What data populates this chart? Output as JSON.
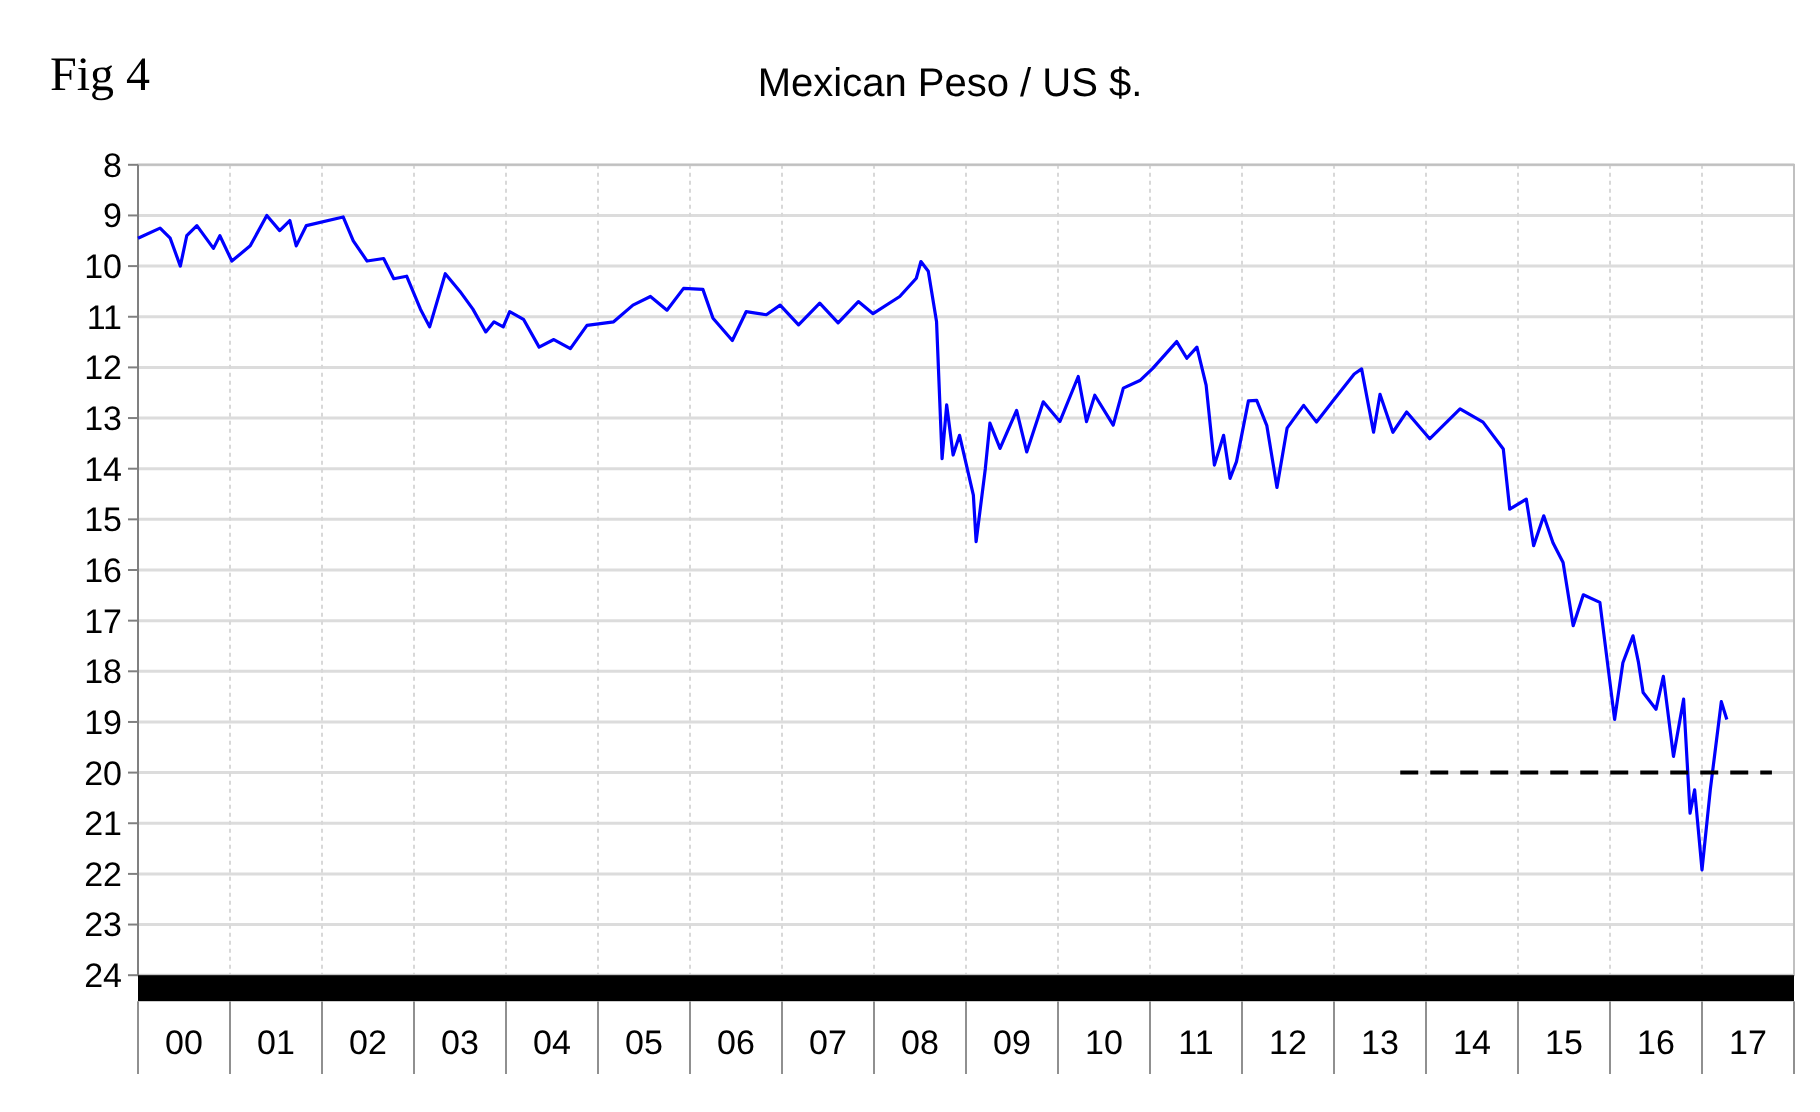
{
  "chart_data": {
    "type": "line",
    "title": "Mexican Peso / US $.",
    "annotations": [
      "Fig 4"
    ],
    "xlim": [
      -0.5,
      17.5
    ],
    "xticks": [
      {
        "value": -0.5,
        "label": null
      },
      {
        "value": 0,
        "label": "00"
      },
      {
        "value": 0.5,
        "label": null
      },
      {
        "value": 1,
        "label": "01"
      },
      {
        "value": 1.5,
        "label": null
      },
      {
        "value": 2,
        "label": "02"
      },
      {
        "value": 2.5,
        "label": null
      },
      {
        "value": 3,
        "label": "03"
      },
      {
        "value": 3.5,
        "label": null
      },
      {
        "value": 4,
        "label": "04"
      },
      {
        "value": 4.5,
        "label": null
      },
      {
        "value": 5,
        "label": "05"
      },
      {
        "value": 5.5,
        "label": null
      },
      {
        "value": 6,
        "label": "06"
      },
      {
        "value": 6.5,
        "label": null
      },
      {
        "value": 7,
        "label": "07"
      },
      {
        "value": 7.5,
        "label": null
      },
      {
        "value": 8,
        "label": "08"
      },
      {
        "value": 8.5,
        "label": null
      },
      {
        "value": 9,
        "label": "09"
      },
      {
        "value": 9.5,
        "label": null
      },
      {
        "value": 10,
        "label": "10"
      },
      {
        "value": 10.5,
        "label": null
      },
      {
        "value": 11,
        "label": "11"
      },
      {
        "value": 11.5,
        "label": null
      },
      {
        "value": 12,
        "label": "12"
      },
      {
        "value": 12.5,
        "label": null
      },
      {
        "value": 13,
        "label": "13"
      },
      {
        "value": 13.5,
        "label": null
      },
      {
        "value": 14,
        "label": "14"
      },
      {
        "value": 14.5,
        "label": null
      },
      {
        "value": 15,
        "label": "15"
      },
      {
        "value": 15.5,
        "label": null
      },
      {
        "value": 16,
        "label": "16"
      },
      {
        "value": 16.5,
        "label": null
      },
      {
        "value": 17,
        "label": "17"
      },
      {
        "value": 17.5,
        "label": null
      }
    ],
    "ylim": [
      24,
      8
    ],
    "yticks": [
      8,
      9,
      10,
      11,
      12,
      13,
      14,
      15,
      16,
      17,
      18,
      19,
      20,
      21,
      22,
      23,
      24
    ],
    "grid": true,
    "marker": "none",
    "series": [
      {
        "color": "#0000ff",
        "line_style": "solid",
        "x": [
          -0.5,
          -0.26,
          -0.15,
          -0.04,
          0.03,
          0.14,
          0.32,
          0.39,
          0.52,
          0.72,
          0.9,
          1.04,
          1.15,
          1.22,
          1.33,
          1.73,
          1.84,
          1.99,
          2.17,
          2.28,
          2.42,
          2.57,
          2.67,
          2.84,
          3.0,
          3.14,
          3.28,
          3.37,
          3.47,
          3.54,
          3.69,
          3.86,
          4.02,
          4.2,
          4.38,
          4.67,
          4.88,
          5.07,
          5.25,
          5.43,
          5.64,
          5.75,
          5.96,
          6.11,
          6.33,
          6.48,
          6.68,
          6.91,
          7.11,
          7.33,
          7.49,
          7.78,
          7.96,
          8.01,
          8.09,
          8.18,
          8.24,
          8.29,
          8.36,
          8.43,
          8.58,
          8.61,
          8.71,
          8.76,
          8.87,
          9.05,
          9.16,
          9.34,
          9.52,
          9.72,
          9.81,
          9.9,
          10.1,
          10.21,
          10.39,
          10.53,
          10.79,
          10.9,
          11.01,
          11.11,
          11.2,
          11.3,
          11.37,
          11.44,
          11.57,
          11.66,
          11.77,
          11.88,
          11.99,
          12.17,
          12.31,
          12.49,
          12.72,
          12.8,
          12.93,
          13.0,
          13.14,
          13.29,
          13.54,
          13.87,
          14.12,
          14.34,
          14.41,
          14.59,
          14.67,
          14.78,
          14.88,
          14.99,
          15.1,
          15.21,
          15.39,
          15.55,
          15.64,
          15.75,
          15.81,
          15.86,
          16.0,
          16.08,
          16.19,
          16.3,
          16.37,
          16.42,
          16.5,
          16.59,
          16.71,
          16.77
        ],
        "values": [
          9.45,
          9.25,
          9.45,
          10.0,
          9.4,
          9.2,
          9.65,
          9.4,
          9.9,
          9.6,
          9.0,
          9.3,
          9.1,
          9.6,
          9.2,
          9.03,
          9.5,
          9.9,
          9.85,
          10.25,
          10.2,
          10.85,
          11.2,
          10.15,
          10.5,
          10.85,
          11.3,
          11.1,
          11.2,
          10.9,
          11.05,
          11.6,
          11.45,
          11.63,
          11.17,
          11.1,
          10.77,
          10.6,
          10.87,
          10.44,
          10.46,
          11.03,
          11.47,
          10.9,
          10.96,
          10.77,
          11.16,
          10.73,
          11.12,
          10.7,
          10.94,
          10.6,
          10.24,
          9.91,
          10.1,
          11.1,
          13.8,
          12.74,
          13.73,
          13.34,
          14.52,
          15.44,
          14.0,
          13.1,
          13.6,
          12.85,
          13.67,
          12.68,
          13.07,
          12.18,
          13.07,
          12.55,
          13.14,
          12.41,
          12.26,
          12.02,
          11.49,
          11.82,
          11.6,
          12.35,
          13.93,
          13.34,
          14.19,
          13.86,
          12.66,
          12.65,
          13.15,
          14.37,
          13.2,
          12.75,
          13.08,
          12.66,
          12.13,
          12.03,
          13.28,
          12.53,
          13.28,
          12.88,
          13.41,
          12.82,
          13.08,
          13.61,
          14.8,
          14.6,
          15.52,
          14.93,
          15.46,
          15.85,
          17.1,
          16.49,
          16.64,
          18.95,
          17.83,
          17.3,
          17.83,
          18.42,
          18.75,
          18.1,
          19.68,
          18.55,
          20.8,
          20.34,
          21.92,
          20.34,
          18.6,
          18.95
        ]
      },
      {
        "color": "#000000",
        "line_style": "dashed",
        "x": [
          13.22,
          17.26
        ],
        "values": [
          20,
          20
        ]
      }
    ]
  }
}
